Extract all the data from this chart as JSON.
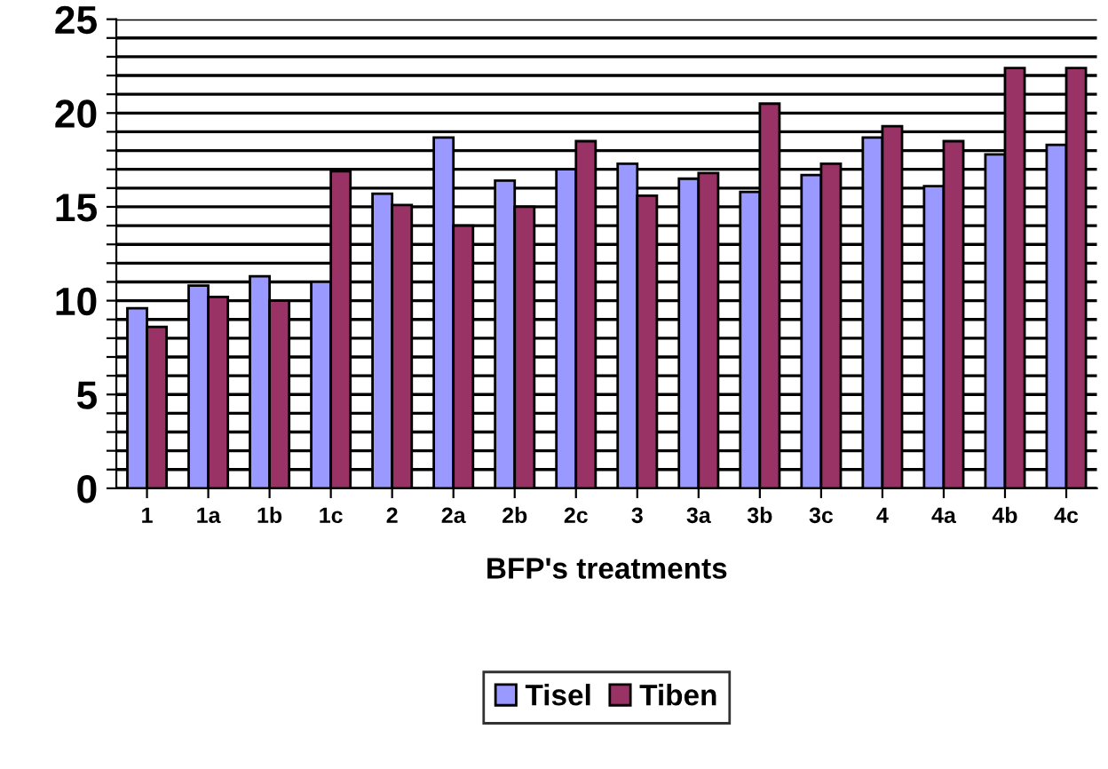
{
  "chart_data": {
    "type": "bar",
    "xlabel": "BFP's treatments",
    "categories": [
      "1",
      "1a",
      "1b",
      "1c",
      "2",
      "2a",
      "2b",
      "2c",
      "3",
      "3a",
      "3b",
      "3c",
      "4",
      "4a",
      "4b",
      "4c"
    ],
    "series": [
      {
        "name": "Tisel",
        "color": "#9999ff",
        "values": [
          9.6,
          10.8,
          11.3,
          11.0,
          15.7,
          18.7,
          16.4,
          17.0,
          17.3,
          16.5,
          15.8,
          16.7,
          18.7,
          16.1,
          17.8,
          18.3
        ]
      },
      {
        "name": "Tiben",
        "color": "#993366",
        "values": [
          8.6,
          10.2,
          10.0,
          16.9,
          15.1,
          14.0,
          15.0,
          18.5,
          15.6,
          16.8,
          20.5,
          17.3,
          19.3,
          18.5,
          22.4,
          22.4
        ]
      }
    ],
    "ylim": [
      0,
      25
    ],
    "yticks": [
      0,
      {
        "value": 1,
        "label": null
      },
      {
        "value": 2,
        "label": null
      },
      {
        "value": 3,
        "label": null
      },
      {
        "value": 4,
        "label": null
      },
      5,
      {
        "value": 6,
        "label": null
      },
      {
        "value": 7,
        "label": null
      },
      {
        "value": 8,
        "label": null
      },
      {
        "value": 9,
        "label": null
      },
      10,
      {
        "value": 11,
        "label": null
      },
      {
        "value": 12,
        "label": null
      },
      {
        "value": 13,
        "label": null
      },
      {
        "value": 14,
        "label": null
      },
      15,
      {
        "value": 16,
        "label": null
      },
      {
        "value": 17,
        "label": null
      },
      {
        "value": 18,
        "label": null
      },
      {
        "value": 19,
        "label": null
      },
      20,
      {
        "value": 21,
        "label": null
      },
      {
        "value": 22,
        "label": null
      },
      {
        "value": 23,
        "label": null
      },
      {
        "value": 24,
        "label": null
      },
      25
    ],
    "grid": "y",
    "legend": "bottom"
  }
}
